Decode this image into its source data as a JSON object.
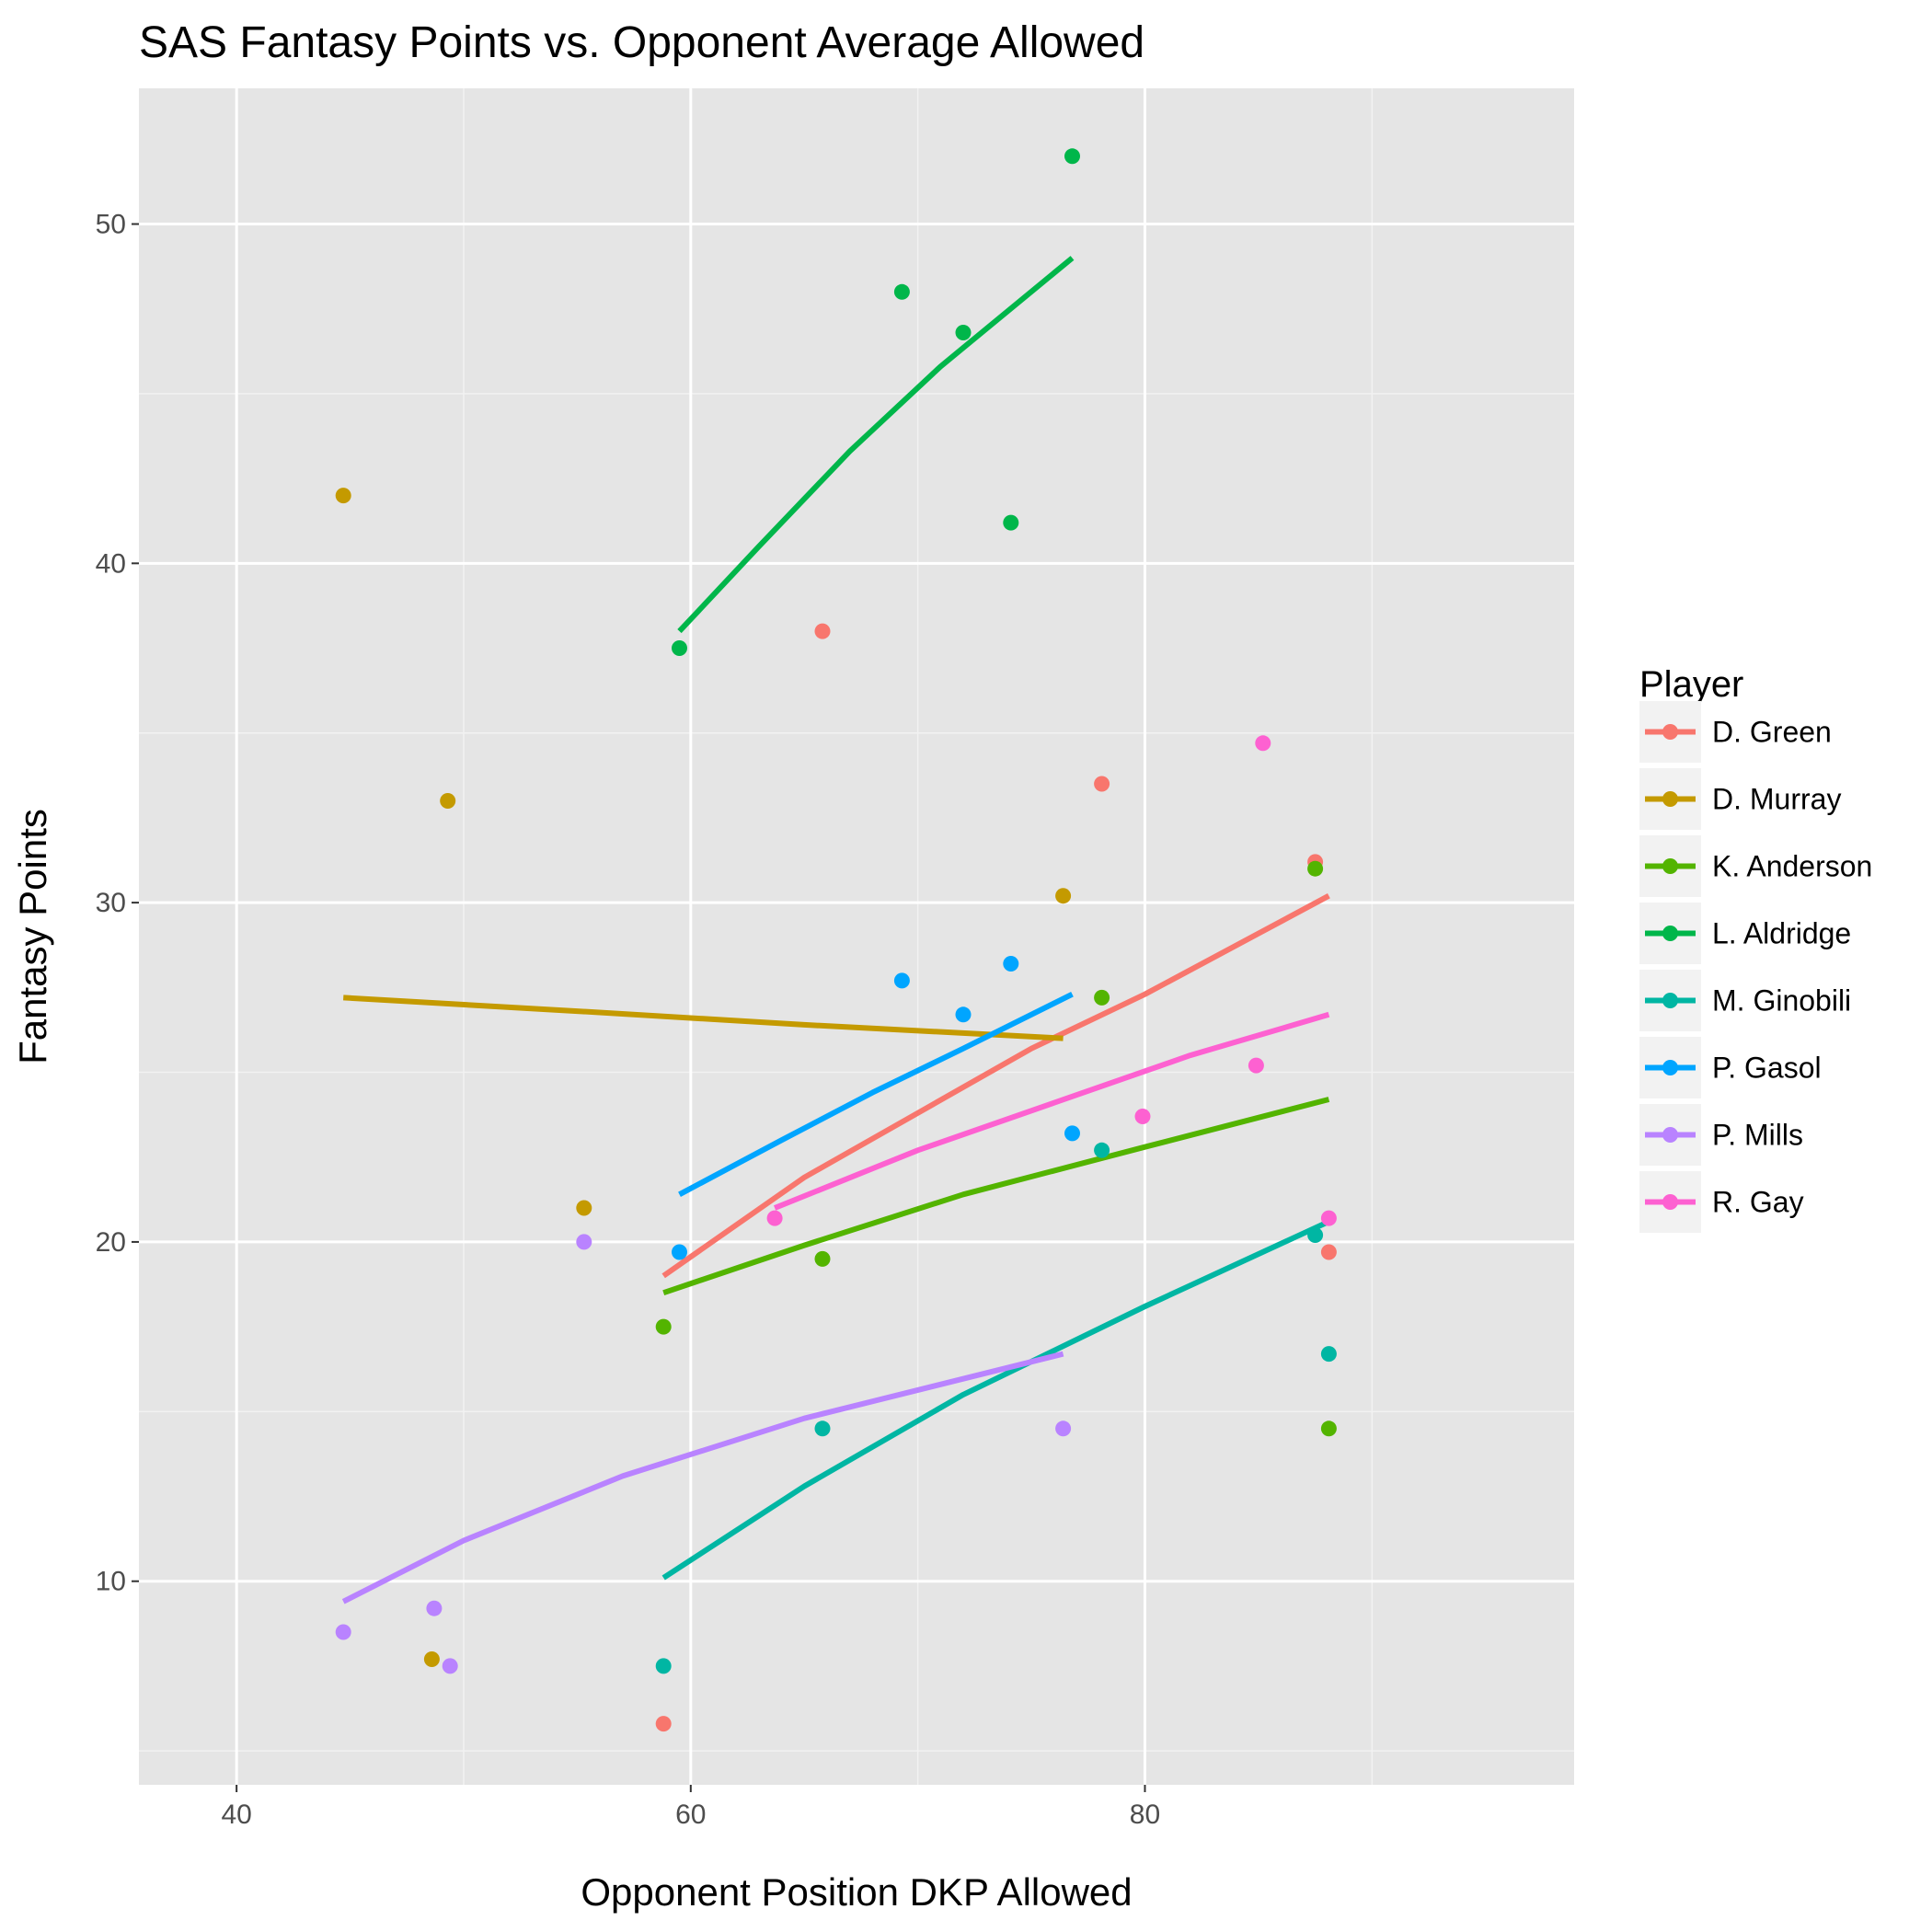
{
  "chart_data": {
    "type": "scatter",
    "title": "SAS Fantasy Points vs. Opponent Average Allowed",
    "xlabel": "Opponent Position DKP Allowed",
    "ylabel": "Fantasy Points",
    "xlim": [
      35.7,
      98.9
    ],
    "ylim": [
      4.0,
      54.0
    ],
    "x_ticks": [
      40,
      60,
      80
    ],
    "y_ticks": [
      10,
      20,
      30,
      40,
      50
    ],
    "grid": true,
    "legend": {
      "title": "Player",
      "position": "right"
    },
    "colors": {
      "panel": "#e5e5e5",
      "grid_major": "#ffffff",
      "grid_minor": "#f2f2f2"
    },
    "series": [
      {
        "name": "D. Green",
        "color": "#f8766d",
        "points": [
          [
            58.8,
            5.8
          ],
          [
            65.8,
            38.0
          ],
          [
            78.1,
            33.5
          ],
          [
            87.5,
            31.2
          ],
          [
            88.1,
            19.7
          ]
        ],
        "trend": [
          [
            58.8,
            19.0
          ],
          [
            65.0,
            21.9
          ],
          [
            70.0,
            23.8
          ],
          [
            75.0,
            25.7
          ],
          [
            80.0,
            27.3
          ],
          [
            88.1,
            30.2
          ]
        ]
      },
      {
        "name": "D. Murray",
        "color": "#c49a00",
        "points": [
          [
            44.7,
            42.0
          ],
          [
            49.3,
            33.0
          ],
          [
            55.3,
            21.0
          ],
          [
            76.4,
            30.2
          ],
          [
            48.6,
            7.7
          ]
        ],
        "trend": [
          [
            44.7,
            27.2
          ],
          [
            55.0,
            26.8
          ],
          [
            65.0,
            26.4
          ],
          [
            76.4,
            26.0
          ]
        ]
      },
      {
        "name": "K. Anderson",
        "color": "#53b400",
        "points": [
          [
            58.8,
            17.5
          ],
          [
            65.8,
            19.5
          ],
          [
            78.1,
            27.2
          ],
          [
            87.5,
            31.0
          ],
          [
            88.1,
            14.5
          ]
        ],
        "trend": [
          [
            58.8,
            18.5
          ],
          [
            65.0,
            19.9
          ],
          [
            72.0,
            21.4
          ],
          [
            80.0,
            22.8
          ],
          [
            88.1,
            24.2
          ]
        ]
      },
      {
        "name": "L. Aldridge",
        "color": "#00b64a",
        "points": [
          [
            59.5,
            37.5
          ],
          [
            69.3,
            48.0
          ],
          [
            72.0,
            46.8
          ],
          [
            74.1,
            41.2
          ],
          [
            76.8,
            52.0
          ]
        ],
        "trend": [
          [
            59.5,
            38.0
          ],
          [
            63.0,
            40.5
          ],
          [
            67.0,
            43.3
          ],
          [
            71.0,
            45.8
          ],
          [
            76.8,
            49.0
          ]
        ]
      },
      {
        "name": "M. Ginobili",
        "color": "#00b6a3",
        "points": [
          [
            58.8,
            7.5
          ],
          [
            65.8,
            14.5
          ],
          [
            78.1,
            22.7
          ],
          [
            87.5,
            20.2
          ],
          [
            88.1,
            16.7
          ]
        ],
        "trend": [
          [
            58.8,
            10.1
          ],
          [
            65.0,
            12.8
          ],
          [
            72.0,
            15.5
          ],
          [
            80.0,
            18.1
          ],
          [
            88.1,
            20.6
          ]
        ]
      },
      {
        "name": "P. Gasol",
        "color": "#00a5ff",
        "points": [
          [
            59.5,
            19.7
          ],
          [
            69.3,
            27.7
          ],
          [
            72.0,
            26.7
          ],
          [
            74.1,
            28.2
          ],
          [
            76.8,
            23.2
          ]
        ],
        "trend": [
          [
            59.5,
            21.4
          ],
          [
            64.0,
            23.0
          ],
          [
            68.0,
            24.4
          ],
          [
            72.0,
            25.7
          ],
          [
            76.8,
            27.3
          ]
        ]
      },
      {
        "name": "P. Mills",
        "color": "#b983ff",
        "points": [
          [
            44.7,
            8.5
          ],
          [
            48.7,
            9.2
          ],
          [
            49.4,
            7.5
          ],
          [
            55.3,
            20.0
          ],
          [
            76.4,
            14.5
          ]
        ],
        "trend": [
          [
            44.7,
            9.4
          ],
          [
            50.0,
            11.2
          ],
          [
            57.0,
            13.1
          ],
          [
            65.0,
            14.8
          ],
          [
            76.4,
            16.7
          ]
        ]
      },
      {
        "name": "R. Gay",
        "color": "#fd61d1",
        "points": [
          [
            63.7,
            20.7
          ],
          [
            79.9,
            23.7
          ],
          [
            84.9,
            25.2
          ],
          [
            85.2,
            34.7
          ],
          [
            88.1,
            20.7
          ]
        ],
        "trend": [
          [
            63.7,
            21.0
          ],
          [
            70.0,
            22.7
          ],
          [
            76.0,
            24.1
          ],
          [
            82.0,
            25.5
          ],
          [
            88.1,
            26.7
          ]
        ]
      }
    ]
  }
}
